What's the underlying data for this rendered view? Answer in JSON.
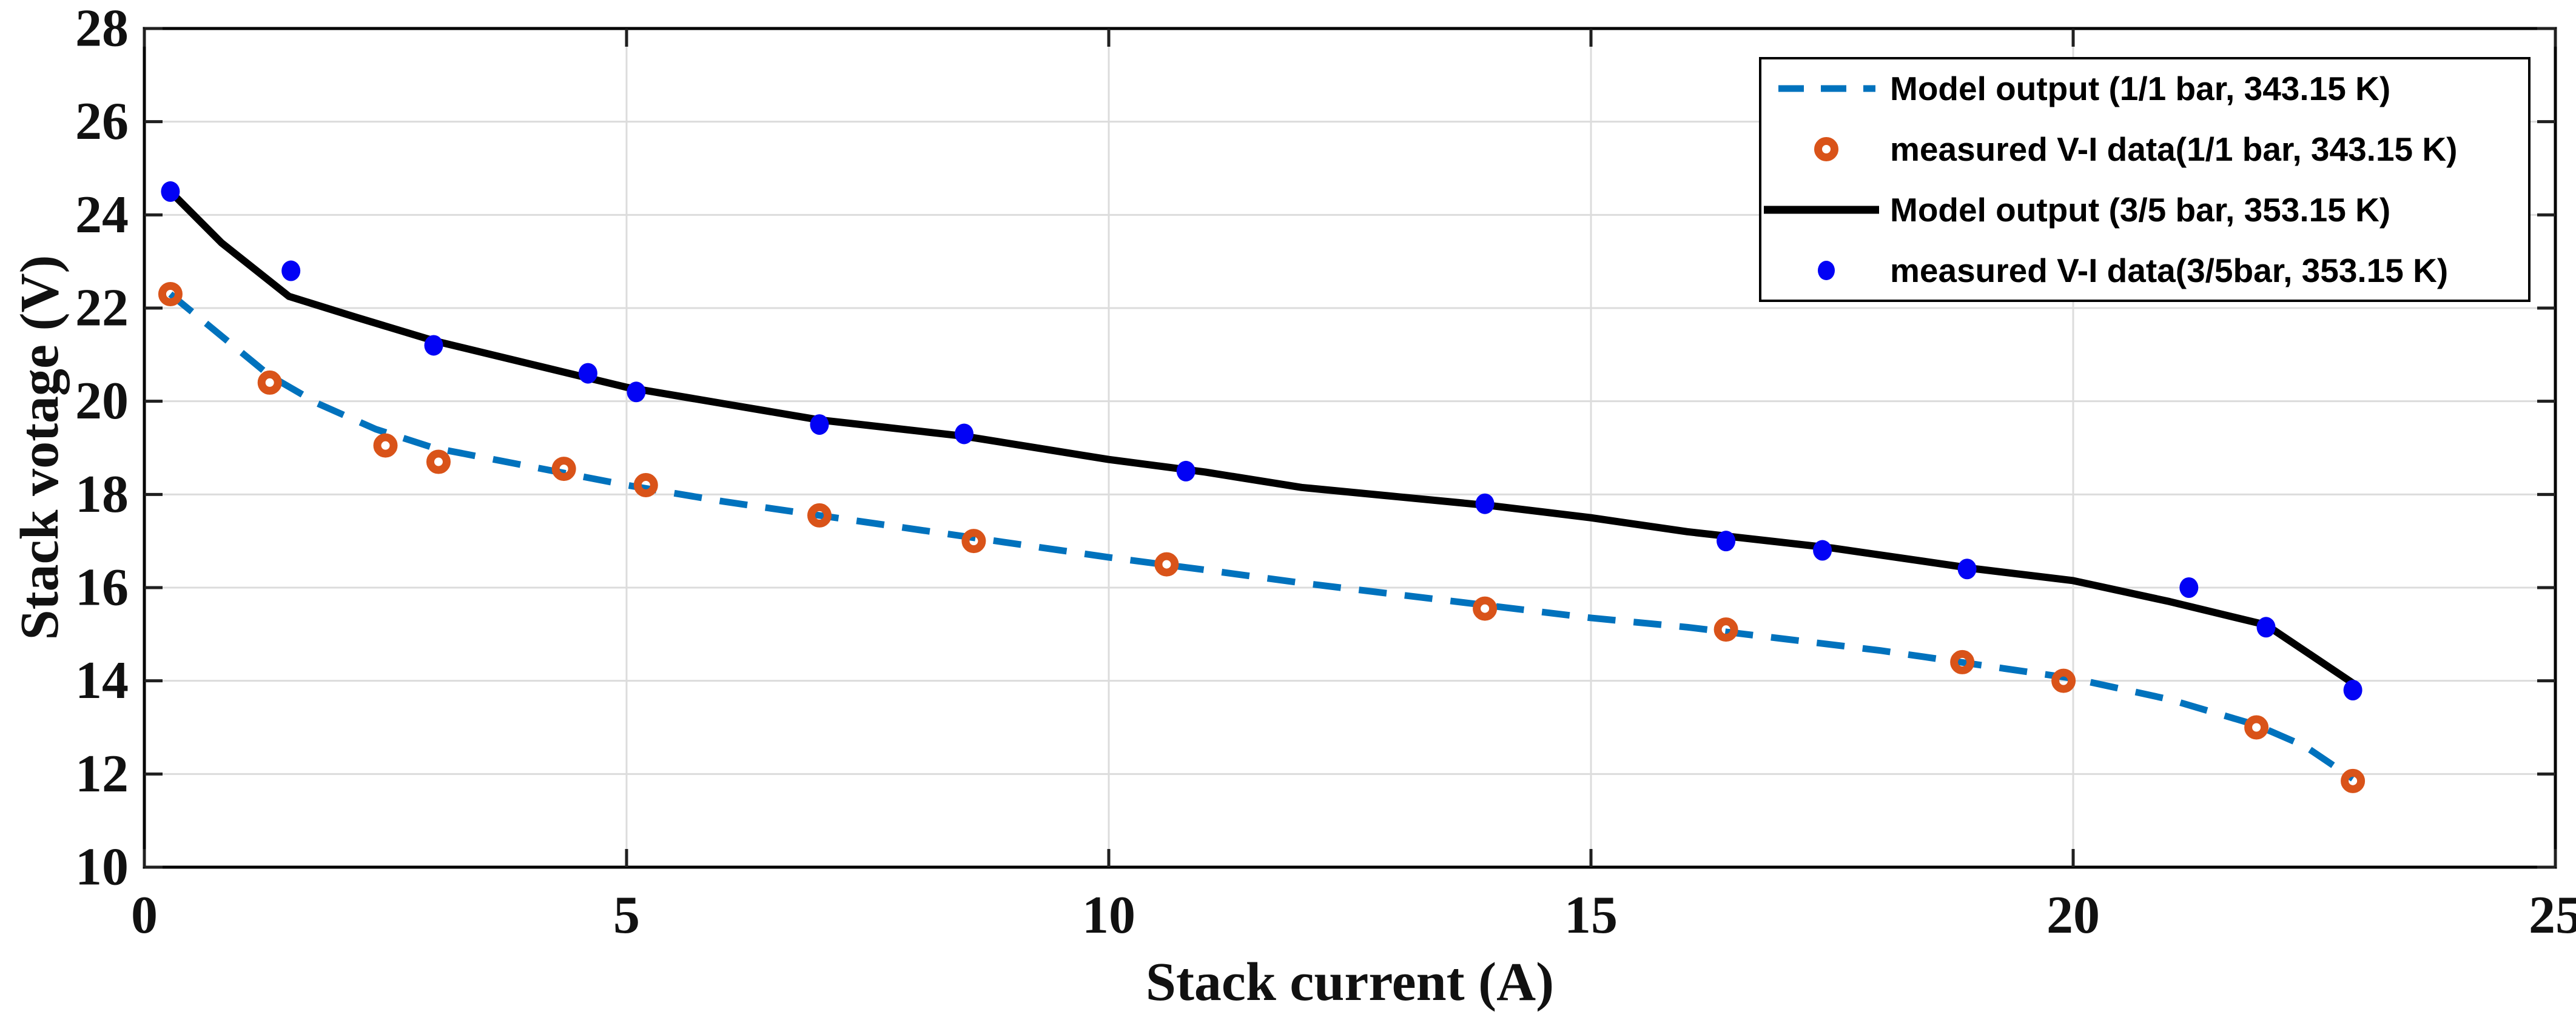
{
  "figure": {
    "background": "#ffffff"
  },
  "chart_data": {
    "type": "line",
    "title": "",
    "xlabel": "Stack current (A)",
    "ylabel": "Stack votage (V)",
    "xlim": [
      0,
      25
    ],
    "ylim": [
      10,
      28
    ],
    "xticks": [
      0,
      5,
      10,
      15,
      20,
      25
    ],
    "yticks": [
      10,
      12,
      14,
      16,
      18,
      20,
      22,
      24,
      26,
      28
    ],
    "grid": true,
    "legend_position": "top-right",
    "axis_color": "#000000",
    "grid_color": "#dcdcdc",
    "tick_color": "#202020",
    "tick_label_color": "#111111",
    "series": [
      {
        "id": "model_11bar",
        "name": "Model output (1/1 bar, 343.15 K)",
        "type": "line",
        "style": "dashed",
        "color": "#0072BD",
        "legend_sample": "dashed-line",
        "points": [
          [
            0.27,
            22.3
          ],
          [
            0.8,
            21.4
          ],
          [
            1.3,
            20.55
          ],
          [
            1.8,
            19.95
          ],
          [
            2.4,
            19.4
          ],
          [
            3.0,
            19.0
          ],
          [
            4.0,
            18.6
          ],
          [
            5.0,
            18.2
          ],
          [
            6.0,
            17.85
          ],
          [
            7.0,
            17.55
          ],
          [
            8.5,
            17.1
          ],
          [
            10.0,
            16.65
          ],
          [
            11.0,
            16.38
          ],
          [
            12.0,
            16.1
          ],
          [
            13.0,
            15.85
          ],
          [
            14.0,
            15.6
          ],
          [
            15.0,
            15.35
          ],
          [
            16.0,
            15.15
          ],
          [
            17.0,
            14.9
          ],
          [
            18.0,
            14.65
          ],
          [
            19.0,
            14.35
          ],
          [
            20.0,
            14.05
          ],
          [
            21.0,
            13.6
          ],
          [
            21.9,
            13.05
          ],
          [
            22.4,
            12.6
          ],
          [
            22.9,
            11.9
          ]
        ]
      },
      {
        "id": "meas_11bar",
        "name": "measured V-I data(1/1 bar, 343.15 K)",
        "type": "scatter",
        "marker": "open-circle",
        "color": "#D95319",
        "legend_sample": "open-circle",
        "points": [
          [
            0.27,
            22.3
          ],
          [
            1.3,
            20.4
          ],
          [
            2.5,
            19.05
          ],
          [
            3.05,
            18.7
          ],
          [
            4.35,
            18.55
          ],
          [
            5.2,
            18.2
          ],
          [
            7.0,
            17.55
          ],
          [
            8.6,
            17.0
          ],
          [
            10.6,
            16.5
          ],
          [
            13.9,
            15.55
          ],
          [
            16.4,
            15.1
          ],
          [
            18.85,
            14.4
          ],
          [
            19.9,
            14.0
          ],
          [
            21.9,
            13.0
          ],
          [
            22.9,
            11.85
          ]
        ]
      },
      {
        "id": "model_35bar",
        "name": "Model output (3/5 bar, 353.15 K)",
        "type": "line",
        "style": "solid",
        "color": "#000000",
        "legend_sample": "solid-line",
        "points": [
          [
            0.27,
            24.5
          ],
          [
            0.8,
            23.4
          ],
          [
            1.5,
            22.25
          ],
          [
            2.2,
            21.8
          ],
          [
            3.0,
            21.3
          ],
          [
            4.0,
            20.8
          ],
          [
            5.0,
            20.3
          ],
          [
            6.0,
            19.95
          ],
          [
            7.0,
            19.6
          ],
          [
            8.5,
            19.25
          ],
          [
            10.0,
            18.75
          ],
          [
            11.0,
            18.48
          ],
          [
            12.0,
            18.15
          ],
          [
            13.0,
            17.95
          ],
          [
            14.0,
            17.75
          ],
          [
            15.0,
            17.5
          ],
          [
            16.0,
            17.2
          ],
          [
            17.5,
            16.85
          ],
          [
            19.0,
            16.4
          ],
          [
            20.0,
            16.15
          ],
          [
            21.0,
            15.7
          ],
          [
            22.0,
            15.2
          ],
          [
            22.9,
            13.95
          ]
        ]
      },
      {
        "id": "meas_35bar",
        "name": "measured V-I data(3/5bar, 353.15 K)",
        "type": "scatter",
        "marker": "filled-dot",
        "color": "#0202F5",
        "legend_sample": "filled-dot",
        "points": [
          [
            0.27,
            24.5
          ],
          [
            1.52,
            22.8
          ],
          [
            3.0,
            21.2
          ],
          [
            4.6,
            20.6
          ],
          [
            5.1,
            20.2
          ],
          [
            7.0,
            19.5
          ],
          [
            8.5,
            19.3
          ],
          [
            10.8,
            18.5
          ],
          [
            13.9,
            17.8
          ],
          [
            16.4,
            17.0
          ],
          [
            17.4,
            16.8
          ],
          [
            18.9,
            16.4
          ],
          [
            21.2,
            16.0
          ],
          [
            22.0,
            15.15
          ],
          [
            22.9,
            13.8
          ]
        ]
      }
    ]
  }
}
